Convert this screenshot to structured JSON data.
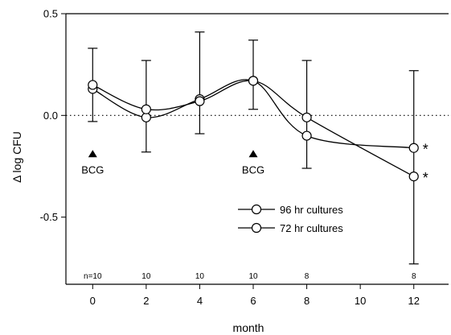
{
  "chart_data": {
    "type": "line",
    "xlabel": "month",
    "ylabel": "Δ log CFU",
    "xlim": [
      -1,
      13.3
    ],
    "ylim": [
      -0.83,
      0.5
    ],
    "x_ticks": [
      0,
      2,
      4,
      6,
      8,
      10,
      12
    ],
    "x_tick_labels": [
      "0",
      "2",
      "4",
      "6",
      "8",
      "10",
      "12"
    ],
    "y_ticks": [
      0.5,
      0.0,
      -0.5
    ],
    "y_tick_labels": [
      "0.5",
      "0.0",
      "-0.5"
    ],
    "reference_line": {
      "y": 0.0,
      "style": "dotted"
    },
    "series": [
      {
        "name": "96 hr cultures",
        "marker": "open-circle",
        "points": [
          {
            "x": 0,
            "y": 0.13
          },
          {
            "x": 2,
            "y": -0.01
          },
          {
            "x": 4,
            "y": 0.08
          },
          {
            "x": 6,
            "y": 0.17
          },
          {
            "x": 8,
            "y": -0.1
          },
          {
            "x": 12,
            "y": -0.16
          }
        ]
      },
      {
        "name": "72 hr cultures",
        "marker": "open-circle",
        "points": [
          {
            "x": 0,
            "y": 0.15
          },
          {
            "x": 2,
            "y": 0.03
          },
          {
            "x": 4,
            "y": 0.07
          },
          {
            "x": 6,
            "y": 0.17
          },
          {
            "x": 8,
            "y": -0.01
          },
          {
            "x": 12,
            "y": -0.3
          }
        ]
      }
    ],
    "error_bars": [
      {
        "x": 0,
        "low": -0.03,
        "high": 0.33
      },
      {
        "x": 2,
        "low": -0.18,
        "high": 0.27
      },
      {
        "x": 4,
        "low": -0.09,
        "high": 0.41
      },
      {
        "x": 6,
        "low": 0.03,
        "high": 0.37
      },
      {
        "x": 8,
        "low": -0.26,
        "high": 0.27
      },
      {
        "x": 12,
        "low": -0.73,
        "high": 0.22
      }
    ],
    "bcg_markers": [
      {
        "x": 0,
        "label": "BCG"
      },
      {
        "x": 6,
        "label": "BCG"
      }
    ],
    "significance_markers": [
      {
        "x": 12,
        "y": -0.16,
        "label": "*"
      },
      {
        "x": 12,
        "y": -0.3,
        "label": "*"
      }
    ],
    "sample_sizes": [
      {
        "x": 0,
        "label": "n=10"
      },
      {
        "x": 2,
        "label": "10"
      },
      {
        "x": 4,
        "label": "10"
      },
      {
        "x": 6,
        "label": "10"
      },
      {
        "x": 8,
        "label": "8"
      },
      {
        "x": 12,
        "label": "8"
      }
    ],
    "legend_position": "lower-right"
  }
}
